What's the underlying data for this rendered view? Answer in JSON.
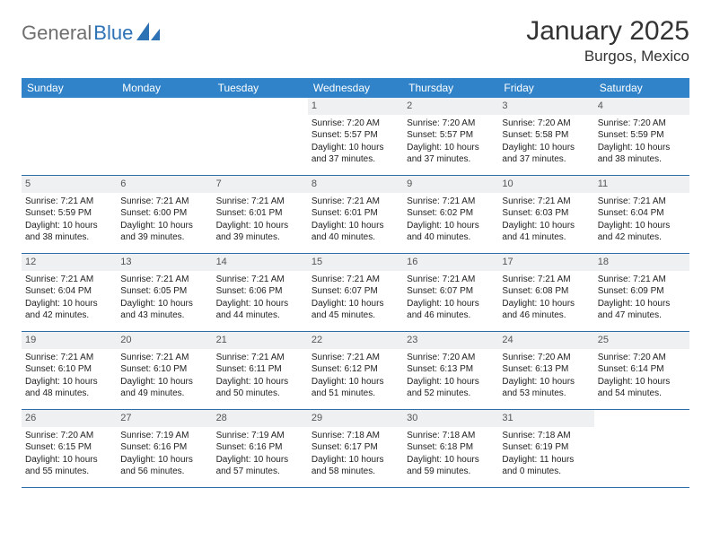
{
  "brand": {
    "name_a": "General",
    "name_b": "Blue"
  },
  "title": "January 2025",
  "location": "Burgos, Mexico",
  "colors": {
    "header_bg": "#3083c8",
    "header_text": "#ffffff",
    "daynum_bg": "#eef0f1",
    "daynum_text": "#555555",
    "rule": "#2d6da8",
    "brand_gray": "#6f6f6f",
    "brand_blue": "#2d72b5",
    "body_text": "#222222"
  },
  "weekdays": [
    "Sunday",
    "Monday",
    "Tuesday",
    "Wednesday",
    "Thursday",
    "Friday",
    "Saturday"
  ],
  "weeks": [
    [
      null,
      null,
      null,
      {
        "n": "1",
        "sr": "Sunrise: 7:20 AM",
        "ss": "Sunset: 5:57 PM",
        "d1": "Daylight: 10 hours",
        "d2": "and 37 minutes."
      },
      {
        "n": "2",
        "sr": "Sunrise: 7:20 AM",
        "ss": "Sunset: 5:57 PM",
        "d1": "Daylight: 10 hours",
        "d2": "and 37 minutes."
      },
      {
        "n": "3",
        "sr": "Sunrise: 7:20 AM",
        "ss": "Sunset: 5:58 PM",
        "d1": "Daylight: 10 hours",
        "d2": "and 37 minutes."
      },
      {
        "n": "4",
        "sr": "Sunrise: 7:20 AM",
        "ss": "Sunset: 5:59 PM",
        "d1": "Daylight: 10 hours",
        "d2": "and 38 minutes."
      }
    ],
    [
      {
        "n": "5",
        "sr": "Sunrise: 7:21 AM",
        "ss": "Sunset: 5:59 PM",
        "d1": "Daylight: 10 hours",
        "d2": "and 38 minutes."
      },
      {
        "n": "6",
        "sr": "Sunrise: 7:21 AM",
        "ss": "Sunset: 6:00 PM",
        "d1": "Daylight: 10 hours",
        "d2": "and 39 minutes."
      },
      {
        "n": "7",
        "sr": "Sunrise: 7:21 AM",
        "ss": "Sunset: 6:01 PM",
        "d1": "Daylight: 10 hours",
        "d2": "and 39 minutes."
      },
      {
        "n": "8",
        "sr": "Sunrise: 7:21 AM",
        "ss": "Sunset: 6:01 PM",
        "d1": "Daylight: 10 hours",
        "d2": "and 40 minutes."
      },
      {
        "n": "9",
        "sr": "Sunrise: 7:21 AM",
        "ss": "Sunset: 6:02 PM",
        "d1": "Daylight: 10 hours",
        "d2": "and 40 minutes."
      },
      {
        "n": "10",
        "sr": "Sunrise: 7:21 AM",
        "ss": "Sunset: 6:03 PM",
        "d1": "Daylight: 10 hours",
        "d2": "and 41 minutes."
      },
      {
        "n": "11",
        "sr": "Sunrise: 7:21 AM",
        "ss": "Sunset: 6:04 PM",
        "d1": "Daylight: 10 hours",
        "d2": "and 42 minutes."
      }
    ],
    [
      {
        "n": "12",
        "sr": "Sunrise: 7:21 AM",
        "ss": "Sunset: 6:04 PM",
        "d1": "Daylight: 10 hours",
        "d2": "and 42 minutes."
      },
      {
        "n": "13",
        "sr": "Sunrise: 7:21 AM",
        "ss": "Sunset: 6:05 PM",
        "d1": "Daylight: 10 hours",
        "d2": "and 43 minutes."
      },
      {
        "n": "14",
        "sr": "Sunrise: 7:21 AM",
        "ss": "Sunset: 6:06 PM",
        "d1": "Daylight: 10 hours",
        "d2": "and 44 minutes."
      },
      {
        "n": "15",
        "sr": "Sunrise: 7:21 AM",
        "ss": "Sunset: 6:07 PM",
        "d1": "Daylight: 10 hours",
        "d2": "and 45 minutes."
      },
      {
        "n": "16",
        "sr": "Sunrise: 7:21 AM",
        "ss": "Sunset: 6:07 PM",
        "d1": "Daylight: 10 hours",
        "d2": "and 46 minutes."
      },
      {
        "n": "17",
        "sr": "Sunrise: 7:21 AM",
        "ss": "Sunset: 6:08 PM",
        "d1": "Daylight: 10 hours",
        "d2": "and 46 minutes."
      },
      {
        "n": "18",
        "sr": "Sunrise: 7:21 AM",
        "ss": "Sunset: 6:09 PM",
        "d1": "Daylight: 10 hours",
        "d2": "and 47 minutes."
      }
    ],
    [
      {
        "n": "19",
        "sr": "Sunrise: 7:21 AM",
        "ss": "Sunset: 6:10 PM",
        "d1": "Daylight: 10 hours",
        "d2": "and 48 minutes."
      },
      {
        "n": "20",
        "sr": "Sunrise: 7:21 AM",
        "ss": "Sunset: 6:10 PM",
        "d1": "Daylight: 10 hours",
        "d2": "and 49 minutes."
      },
      {
        "n": "21",
        "sr": "Sunrise: 7:21 AM",
        "ss": "Sunset: 6:11 PM",
        "d1": "Daylight: 10 hours",
        "d2": "and 50 minutes."
      },
      {
        "n": "22",
        "sr": "Sunrise: 7:21 AM",
        "ss": "Sunset: 6:12 PM",
        "d1": "Daylight: 10 hours",
        "d2": "and 51 minutes."
      },
      {
        "n": "23",
        "sr": "Sunrise: 7:20 AM",
        "ss": "Sunset: 6:13 PM",
        "d1": "Daylight: 10 hours",
        "d2": "and 52 minutes."
      },
      {
        "n": "24",
        "sr": "Sunrise: 7:20 AM",
        "ss": "Sunset: 6:13 PM",
        "d1": "Daylight: 10 hours",
        "d2": "and 53 minutes."
      },
      {
        "n": "25",
        "sr": "Sunrise: 7:20 AM",
        "ss": "Sunset: 6:14 PM",
        "d1": "Daylight: 10 hours",
        "d2": "and 54 minutes."
      }
    ],
    [
      {
        "n": "26",
        "sr": "Sunrise: 7:20 AM",
        "ss": "Sunset: 6:15 PM",
        "d1": "Daylight: 10 hours",
        "d2": "and 55 minutes."
      },
      {
        "n": "27",
        "sr": "Sunrise: 7:19 AM",
        "ss": "Sunset: 6:16 PM",
        "d1": "Daylight: 10 hours",
        "d2": "and 56 minutes."
      },
      {
        "n": "28",
        "sr": "Sunrise: 7:19 AM",
        "ss": "Sunset: 6:16 PM",
        "d1": "Daylight: 10 hours",
        "d2": "and 57 minutes."
      },
      {
        "n": "29",
        "sr": "Sunrise: 7:18 AM",
        "ss": "Sunset: 6:17 PM",
        "d1": "Daylight: 10 hours",
        "d2": "and 58 minutes."
      },
      {
        "n": "30",
        "sr": "Sunrise: 7:18 AM",
        "ss": "Sunset: 6:18 PM",
        "d1": "Daylight: 10 hours",
        "d2": "and 59 minutes."
      },
      {
        "n": "31",
        "sr": "Sunrise: 7:18 AM",
        "ss": "Sunset: 6:19 PM",
        "d1": "Daylight: 11 hours",
        "d2": "and 0 minutes."
      },
      null
    ]
  ]
}
